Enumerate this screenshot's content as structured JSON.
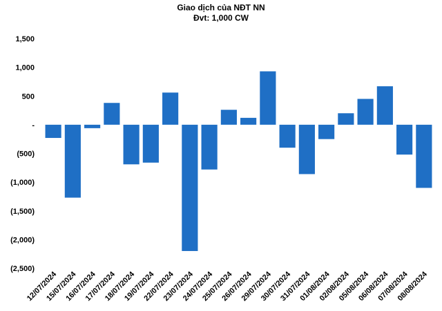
{
  "chart_data": {
    "type": "bar",
    "title": "Giao dịch của NĐT NN",
    "subtitle": "Đvt: 1,000 CW",
    "xlabel": "",
    "ylabel": "",
    "ylim": [
      -2500,
      1500
    ],
    "yticks": [
      1500,
      1000,
      500,
      0,
      -500,
      -1000,
      -1500,
      -2000,
      -2500
    ],
    "ytick_labels": [
      "1,500",
      "1,000",
      "500",
      "-",
      "(500)",
      "(1,000)",
      "(1,500)",
      "(2,000)",
      "(2,500)"
    ],
    "grid": false,
    "legend": "none",
    "bar_color": "#1f6fc5",
    "categories": [
      "12/07/2024",
      "15/07/2024",
      "16/07/2024",
      "17/07/2024",
      "18/07/2024",
      "19/07/2024",
      "22/07/2024",
      "23/07/2024",
      "24/07/2024",
      "25/07/2024",
      "26/07/2024",
      "29/07/2024",
      "30/07/2024",
      "31/07/2024",
      "01/08/2024",
      "02/08/2024",
      "05/08/2024",
      "06/08/2024",
      "07/08/2024",
      "08/08/2024"
    ],
    "values": [
      -230,
      -1270,
      -60,
      380,
      -690,
      -660,
      560,
      -2200,
      -780,
      260,
      120,
      930,
      -400,
      -860,
      -250,
      200,
      450,
      670,
      -520,
      -1100
    ]
  }
}
